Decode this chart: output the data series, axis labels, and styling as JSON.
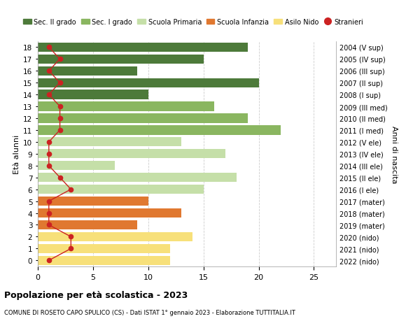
{
  "ages": [
    18,
    17,
    16,
    15,
    14,
    13,
    12,
    11,
    10,
    9,
    8,
    7,
    6,
    5,
    4,
    3,
    2,
    1,
    0
  ],
  "years": [
    "2004 (V sup)",
    "2005 (IV sup)",
    "2006 (III sup)",
    "2007 (II sup)",
    "2008 (I sup)",
    "2009 (III med)",
    "2010 (II med)",
    "2011 (I med)",
    "2012 (V ele)",
    "2013 (IV ele)",
    "2014 (III ele)",
    "2015 (II ele)",
    "2016 (I ele)",
    "2017 (mater)",
    "2018 (mater)",
    "2019 (mater)",
    "2020 (nido)",
    "2021 (nido)",
    "2022 (nido)"
  ],
  "bar_values": [
    19,
    15,
    9,
    20,
    10,
    16,
    19,
    22,
    13,
    17,
    7,
    18,
    15,
    10,
    13,
    9,
    14,
    12,
    12
  ],
  "stranieri": [
    1,
    2,
    1,
    2,
    1,
    2,
    2,
    2,
    1,
    1,
    1,
    2,
    3,
    1,
    1,
    1,
    3,
    3,
    1
  ],
  "bar_colors": [
    "#4d7a3a",
    "#4d7a3a",
    "#4d7a3a",
    "#4d7a3a",
    "#4d7a3a",
    "#8ab660",
    "#8ab660",
    "#8ab660",
    "#c5dfa8",
    "#c5dfa8",
    "#c5dfa8",
    "#c5dfa8",
    "#c5dfa8",
    "#e07830",
    "#e07830",
    "#e07830",
    "#f7e07a",
    "#f7e07a",
    "#f7e07a"
  ],
  "categories": [
    "Sec. II grado",
    "Sec. I grado",
    "Scuola Primaria",
    "Scuola Infanzia",
    "Asilo Nido",
    "Stranieri"
  ],
  "legend_colors": [
    "#4d7a3a",
    "#8ab660",
    "#c5dfa8",
    "#e07830",
    "#f7e07a",
    "#cc2222"
  ],
  "stranieri_color": "#cc2222",
  "grid_color": "#cccccc",
  "title_bold": "Popolazione per età scolastica - 2023",
  "subtitle": "COMUNE DI ROSETO CAPO SPULICO (CS) - Dati ISTAT 1° gennaio 2023 - Elaborazione TUTTITALIA.IT",
  "xlabel_left": "Età alunni",
  "ylabel_right": "Anni di nascita",
  "xlim": [
    0,
    27
  ],
  "background_color": "#ffffff",
  "bar_height": 0.78
}
